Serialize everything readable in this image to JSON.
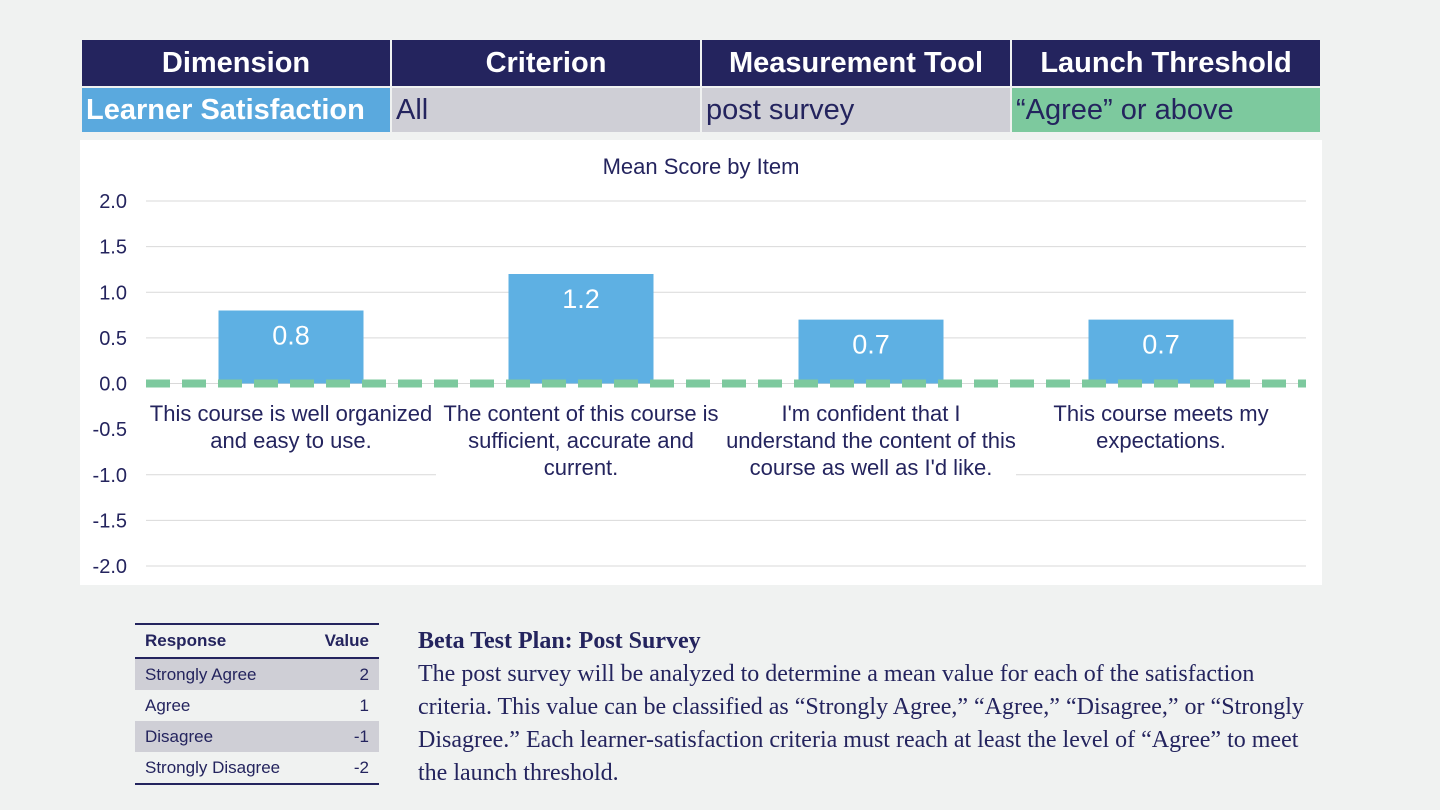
{
  "header_table": {
    "columns": [
      "Dimension",
      "Criterion",
      "Measurement Tool",
      "Launch Threshold"
    ],
    "row": {
      "dimension": "Learner Satisfaction",
      "criterion": "All",
      "measurement_tool": "post survey",
      "launch_threshold": "“Agree” or above"
    },
    "colors": {
      "header": "#24245e",
      "dimension": "#5aa9de",
      "cell": "#cfcfd6",
      "threshold": "#7dc99e"
    }
  },
  "chart_data": {
    "type": "bar",
    "title": "Mean Score by Item",
    "categories": [
      "This course is well organized and easy to use.",
      "The content of this course is sufficient, accurate and current.",
      "I'm confident that I understand the content of this course as well as I'd like.",
      "This course meets my expectations."
    ],
    "values": [
      0.8,
      1.2,
      0.7,
      0.7
    ],
    "data_labels": [
      "0.8",
      "1.2",
      "0.7",
      "0.7"
    ],
    "ylim": [
      -2.0,
      2.0
    ],
    "yticks": [
      "2.0",
      "1.5",
      "1.0",
      "0.5",
      "0.0",
      "-0.5",
      "-1.0",
      "-1.5",
      "-2.0"
    ],
    "ytick_values": [
      2.0,
      1.5,
      1.0,
      0.5,
      0.0,
      -0.5,
      -1.0,
      -1.5,
      -2.0
    ],
    "threshold": 0,
    "grid": true,
    "colors": {
      "bar": "#5eb0e3",
      "threshold_line": "#7dc99e",
      "grid": "#d9d9d9"
    }
  },
  "response_table": {
    "headers": {
      "response": "Response",
      "value": "Value"
    },
    "rows": [
      {
        "response": "Strongly Agree",
        "value": "2"
      },
      {
        "response": "Agree",
        "value": "1"
      },
      {
        "response": "Disagree",
        "value": "-1"
      },
      {
        "response": "Strongly Disagree",
        "value": "-2"
      }
    ]
  },
  "description": {
    "title": "Beta Test Plan: Post Survey",
    "body": "The post survey will be analyzed to determine a mean value for each of the satisfaction criteria. This value can be classified as “Strongly Agree,” “Agree,” “Disagree,” or “Strongly Disagree.” Each learner-satisfaction criteria must reach at least the level of “Agree” to meet the launch threshold."
  }
}
